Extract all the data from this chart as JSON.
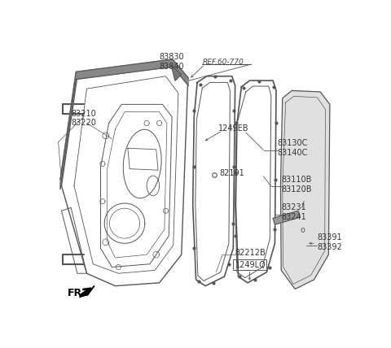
{
  "background_color": "#ffffff",
  "line_color": "#555555",
  "text_color": "#333333",
  "figsize": [
    4.8,
    4.28
  ],
  "dpi": 100,
  "labels": {
    "83830_83840": "83830\n83840",
    "REF60770": "REF.60-770",
    "83210_83220": "83210\n83220",
    "1249EB": "1249EB",
    "83130C_83140C": "83130C\n83140C",
    "82191": "82191",
    "83110B_83120B": "83110B\n83120B",
    "83231_83241": "83231\n83241",
    "82212B": "82212B",
    "1249LQ": "1249LQ",
    "83391_83392": "83391\n83392",
    "FR": "FR."
  }
}
